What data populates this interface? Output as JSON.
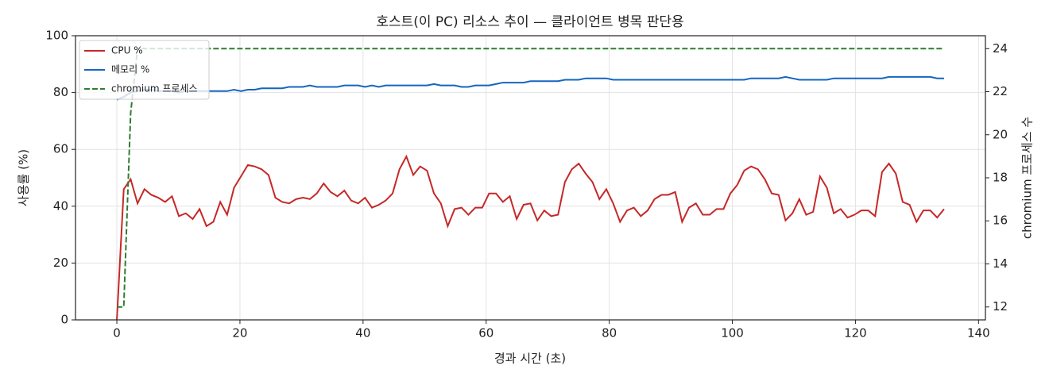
{
  "chart_data": {
    "type": "line",
    "title": "호스트(이 PC) 리소스 추이 — 클라이언트 병목 판단용",
    "xlabel": "경과 시간 (초)",
    "ylabel": "사용률 (%)",
    "y2label": "chromium 프로세스 수",
    "x": [
      0,
      1.12,
      2.24,
      3.36,
      4.48,
      5.6,
      6.72,
      7.84,
      8.96,
      10.08,
      11.2,
      12.32,
      13.44,
      14.56,
      15.68,
      16.8,
      17.92,
      19.04,
      20.16,
      21.28,
      22.4,
      23.52,
      24.64,
      25.76,
      26.88,
      28,
      29.12,
      30.24,
      31.36,
      32.48,
      33.6,
      34.72,
      35.84,
      36.96,
      38.08,
      39.2,
      40.32,
      41.44,
      42.56,
      43.68,
      44.8,
      45.92,
      47.04,
      48.16,
      49.28,
      50.4,
      51.52,
      52.64,
      53.76,
      54.88,
      56,
      57.12,
      58.24,
      59.36,
      60.48,
      61.6,
      62.72,
      63.84,
      64.96,
      66.08,
      67.2,
      68.32,
      69.44,
      70.56,
      71.68,
      72.8,
      73.92,
      75.04,
      76.16,
      77.28,
      78.4,
      79.52,
      80.64,
      81.76,
      82.88,
      84,
      85.12,
      86.24,
      87.36,
      88.48,
      89.6,
      90.72,
      91.84,
      92.96,
      94.08,
      95.2,
      96.32,
      97.44,
      98.56,
      99.68,
      100.8,
      101.92,
      103.04,
      104.16,
      105.28,
      106.4,
      107.52,
      108.64,
      109.76,
      110.88,
      112,
      113.12,
      114.24,
      115.36,
      116.48,
      117.6,
      118.72,
      119.84,
      120.96,
      122.08,
      123.2,
      124.32,
      125.44,
      126.56,
      127.68,
      128.8,
      129.92,
      131.04,
      132.16,
      133.28,
      134.4
    ],
    "series": [
      {
        "name": "CPU %",
        "color": "#c62828",
        "dash": false,
        "values": [
          0,
          46,
          49.5,
          41,
          46,
          44,
          43,
          41.5,
          43.5,
          36.5,
          37.5,
          35.5,
          39,
          33,
          34.5,
          41.5,
          37,
          46.5,
          50.5,
          54.5,
          54,
          53,
          51,
          43,
          41.5,
          41,
          42.5,
          43,
          42.5,
          44.5,
          48,
          45,
          43.5,
          45.5,
          42,
          41,
          43,
          39.5,
          40.5,
          42,
          44.5,
          53,
          57.5,
          51,
          54,
          52.5,
          44.5,
          41,
          33,
          39,
          39.5,
          37,
          39.5,
          39.5,
          44.5,
          44.5,
          41.5,
          43.5,
          35.5,
          40.5,
          41,
          35,
          38.5,
          36.5,
          37,
          48.5,
          53,
          55,
          51.5,
          48.5,
          42.5,
          46,
          41,
          34.5,
          38.5,
          39.5,
          36.5,
          38.5,
          42.5,
          44,
          44,
          45,
          34.5,
          39.5,
          41,
          37,
          37,
          39,
          39,
          44.5,
          47.5,
          52.5,
          54,
          53,
          49.5,
          44.5,
          44,
          35,
          37.5,
          42.5,
          37,
          38,
          50.5,
          46.5,
          37.5,
          39,
          36,
          37,
          38.5,
          38.5,
          36.5,
          52,
          55,
          51.5,
          41.5,
          40.5,
          34.5,
          38.5,
          38.5,
          36,
          39
        ]
      },
      {
        "name": "메모리 %",
        "color": "#1565c0",
        "dash": false,
        "values": [
          77.5,
          78.5,
          80,
          80.5,
          81,
          81,
          80.5,
          80.5,
          80.5,
          80,
          80.5,
          80.5,
          80.5,
          80.5,
          80.5,
          80.5,
          80.5,
          81,
          80.5,
          81,
          81,
          81.5,
          81.5,
          81.5,
          81.5,
          82,
          82,
          82,
          82.5,
          82,
          82,
          82,
          82,
          82.5,
          82.5,
          82.5,
          82,
          82.5,
          82,
          82.5,
          82.5,
          82.5,
          82.5,
          82.5,
          82.5,
          82.5,
          83,
          82.5,
          82.5,
          82.5,
          82,
          82,
          82.5,
          82.5,
          82.5,
          83,
          83.5,
          83.5,
          83.5,
          83.5,
          84,
          84,
          84,
          84,
          84,
          84.5,
          84.5,
          84.5,
          85,
          85,
          85,
          85,
          84.5,
          84.5,
          84.5,
          84.5,
          84.5,
          84.5,
          84.5,
          84.5,
          84.5,
          84.5,
          84.5,
          84.5,
          84.5,
          84.5,
          84.5,
          84.5,
          84.5,
          84.5,
          84.5,
          84.5,
          85,
          85,
          85,
          85,
          85,
          85.5,
          85,
          84.5,
          84.5,
          84.5,
          84.5,
          84.5,
          85,
          85,
          85,
          85,
          85,
          85,
          85,
          85,
          85.5,
          85.5,
          85.5,
          85.5,
          85.5,
          85.5,
          85.5,
          85,
          85
        ]
      },
      {
        "name": "chromium 프로세스",
        "color": "#2e7d32",
        "dash": true,
        "axis": "y2",
        "values": [
          12,
          12,
          21,
          24,
          24,
          24,
          24,
          24,
          24,
          24,
          24,
          24,
          24,
          24,
          24,
          24,
          24,
          24,
          24,
          24,
          24,
          24,
          24,
          24,
          24,
          24,
          24,
          24,
          24,
          24,
          24,
          24,
          24,
          24,
          24,
          24,
          24,
          24,
          24,
          24,
          24,
          24,
          24,
          24,
          24,
          24,
          24,
          24,
          24,
          24,
          24,
          24,
          24,
          24,
          24,
          24,
          24,
          24,
          24,
          24,
          24,
          24,
          24,
          24,
          24,
          24,
          24,
          24,
          24,
          24,
          24,
          24,
          24,
          24,
          24,
          24,
          24,
          24,
          24,
          24,
          24,
          24,
          24,
          24,
          24,
          24,
          24,
          24,
          24,
          24,
          24,
          24,
          24,
          24,
          24,
          24,
          24,
          24,
          24,
          24,
          24,
          24,
          24,
          24,
          24,
          24,
          24,
          24,
          24,
          24,
          24,
          24,
          24,
          24,
          24,
          24,
          24,
          24,
          24,
          24,
          24
        ]
      }
    ],
    "xlim": [
      -6.72,
      141.12
    ],
    "xticks": [
      0,
      20,
      40,
      60,
      80,
      100,
      120,
      140
    ],
    "ylim": [
      0,
      100
    ],
    "yticks": [
      0,
      20,
      40,
      60,
      80,
      100
    ],
    "y2lim": [
      11.4,
      24.6
    ],
    "y2ticks": [
      12,
      14,
      16,
      18,
      20,
      22,
      24
    ],
    "grid": true,
    "legend": "upper left"
  }
}
